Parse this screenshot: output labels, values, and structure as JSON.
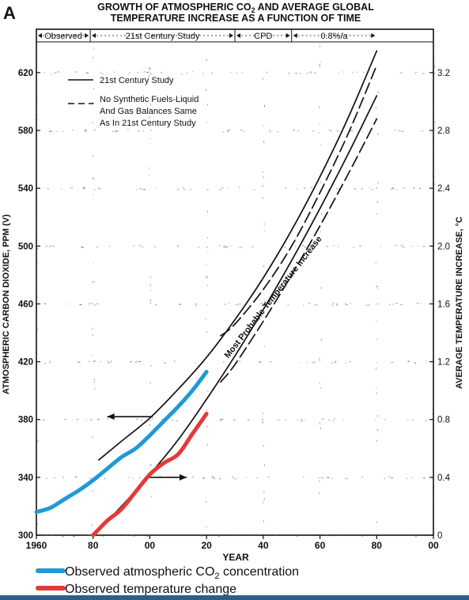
{
  "chart_data": {
    "type": "line",
    "panel_letter": "A",
    "title_line1": "GROWTH OF ATMOSPHERIC CO",
    "title_sub": "2",
    "title_line1_rest": " AND AVERAGE GLOBAL",
    "title_line2": "TEMPERATURE INCREASE AS A FUNCTION OF TIME",
    "xlabel": "YEAR",
    "ylabel_left": "ATMOSPHERIC CARBON DIOXIDE, PPM (V)",
    "ylabel_right": "AVERAGE TEMPERATURE INCREASE, °C",
    "xlim": [
      1960,
      2100
    ],
    "ylim_left": [
      300,
      650
    ],
    "ylim_right": [
      0,
      3.5
    ],
    "x_ticks": [
      {
        "value": 1960,
        "label": "1960"
      },
      {
        "value": 1980,
        "label": "80"
      },
      {
        "value": 2000,
        "label": "00"
      },
      {
        "value": 2020,
        "label": "20"
      },
      {
        "value": 2040,
        "label": "40"
      },
      {
        "value": 2060,
        "label": "60"
      },
      {
        "value": 2080,
        "label": "80"
      },
      {
        "value": 2100,
        "label": "00"
      }
    ],
    "y_ticks_left": [
      {
        "value": 300,
        "label": "300"
      },
      {
        "value": 340,
        "label": "340"
      },
      {
        "value": 380,
        "label": "380"
      },
      {
        "value": 420,
        "label": "420"
      },
      {
        "value": 460,
        "label": "460"
      },
      {
        "value": 500,
        "label": "500"
      },
      {
        "value": 540,
        "label": "540"
      },
      {
        "value": 580,
        "label": "580"
      },
      {
        "value": 620,
        "label": "620"
      }
    ],
    "y_ticks_right": [
      {
        "value": 0,
        "label": "0"
      },
      {
        "value": 0.4,
        "label": "0.4"
      },
      {
        "value": 0.8,
        "label": "0.8"
      },
      {
        "value": 1.2,
        "label": "1.2"
      },
      {
        "value": 1.6,
        "label": "1.6"
      },
      {
        "value": 2.0,
        "label": "2.0"
      },
      {
        "value": 2.4,
        "label": "2.4"
      },
      {
        "value": 2.8,
        "label": "2.8"
      },
      {
        "value": 3.2,
        "label": "3.2"
      }
    ],
    "periods": [
      {
        "label": "Observed",
        "from": 1960,
        "to": 1979
      },
      {
        "label": "21st Century Study",
        "from": 1979,
        "to": 2030
      },
      {
        "label": "CPD",
        "from": 2030,
        "to": 2050
      },
      {
        "label": "0.8%/a",
        "from": 2050,
        "to": 2080
      }
    ],
    "legend_in_chart": {
      "position": "top-left",
      "entries": [
        {
          "label": "21st Century Study",
          "style": "solid"
        },
        {
          "label_lines": [
            "No Synthetic Fuels-Liquid",
            "And Gas Balances Same",
            "As In 21st Century Study"
          ],
          "style": "dashed"
        }
      ]
    },
    "annotation": "Most Probable Temperature Increase",
    "grid": false,
    "series": [
      {
        "name": "21st Century Study",
        "axis": "left",
        "style": "solid",
        "color": "#111111",
        "x": [
          1982,
          1990,
          2000,
          2010,
          2020,
          2030,
          2040,
          2050,
          2060,
          2070,
          2080
        ],
        "y": [
          352,
          365,
          381,
          401,
          423,
          449,
          478,
          511,
          548,
          589,
          635
        ]
      },
      {
        "name": "No Synthetic Fuels-Liquid And Gas Balances Same As In 21st Century Study",
        "axis": "left",
        "style": "dashed",
        "color": "#111111",
        "x": [
          2025,
          2030,
          2040,
          2050,
          2060,
          2070,
          2080
        ],
        "y": [
          438,
          446,
          470,
          500,
          537,
          578,
          625
        ]
      },
      {
        "name": "Most Probable Temperature Increase (upper)",
        "axis": "right",
        "style": "solid",
        "color": "#111111",
        "x": [
          1980,
          1990,
          2000,
          2010,
          2020,
          2030,
          2040,
          2050,
          2060,
          2070,
          2080
        ],
        "y": [
          0.0,
          0.2,
          0.42,
          0.66,
          0.94,
          1.24,
          1.56,
          1.9,
          2.26,
          2.64,
          3.04
        ]
      },
      {
        "name": "Most Probable Temperature Increase (lower, dashed)",
        "axis": "right",
        "style": "dashed",
        "color": "#111111",
        "x": [
          2025,
          2030,
          2040,
          2050,
          2060,
          2070,
          2080
        ],
        "y": [
          1.06,
          1.18,
          1.48,
          1.8,
          2.14,
          2.5,
          2.88
        ]
      },
      {
        "name": "Observed atmospheric CO₂ concentration",
        "axis": "left",
        "style": "solid",
        "color": "#1e9ad6",
        "x": [
          1960,
          1965,
          1970,
          1975,
          1980,
          1985,
          1990,
          1995,
          2000,
          2005,
          2010,
          2015,
          2020
        ],
        "y": [
          316,
          319,
          325,
          331,
          338,
          346,
          354,
          360,
          369,
          379,
          389,
          400,
          413
        ]
      },
      {
        "name": "Observed temperature change",
        "axis": "right",
        "style": "solid",
        "color": "#e33a3a",
        "x": [
          1980,
          1985,
          1990,
          1995,
          2000,
          2005,
          2010,
          2015,
          2020
        ],
        "y": [
          0.0,
          0.1,
          0.18,
          0.3,
          0.42,
          0.5,
          0.56,
          0.7,
          0.84
        ]
      }
    ],
    "arrows": [
      {
        "direction": "left",
        "x_from": 2001,
        "x_to": 1985,
        "axis": "left",
        "y": 382
      },
      {
        "direction": "right",
        "x_from": 2000,
        "x_to": 2013,
        "axis": "right",
        "y": 0.4
      }
    ],
    "legend": {
      "position": "bottom",
      "entries": [
        {
          "label": "Observed atmospheric CO",
          "sub": "2",
          "label_rest": " concentration",
          "color": "#1e9ad6"
        },
        {
          "label": "Observed temperature change",
          "color": "#e33a3a"
        }
      ]
    }
  }
}
